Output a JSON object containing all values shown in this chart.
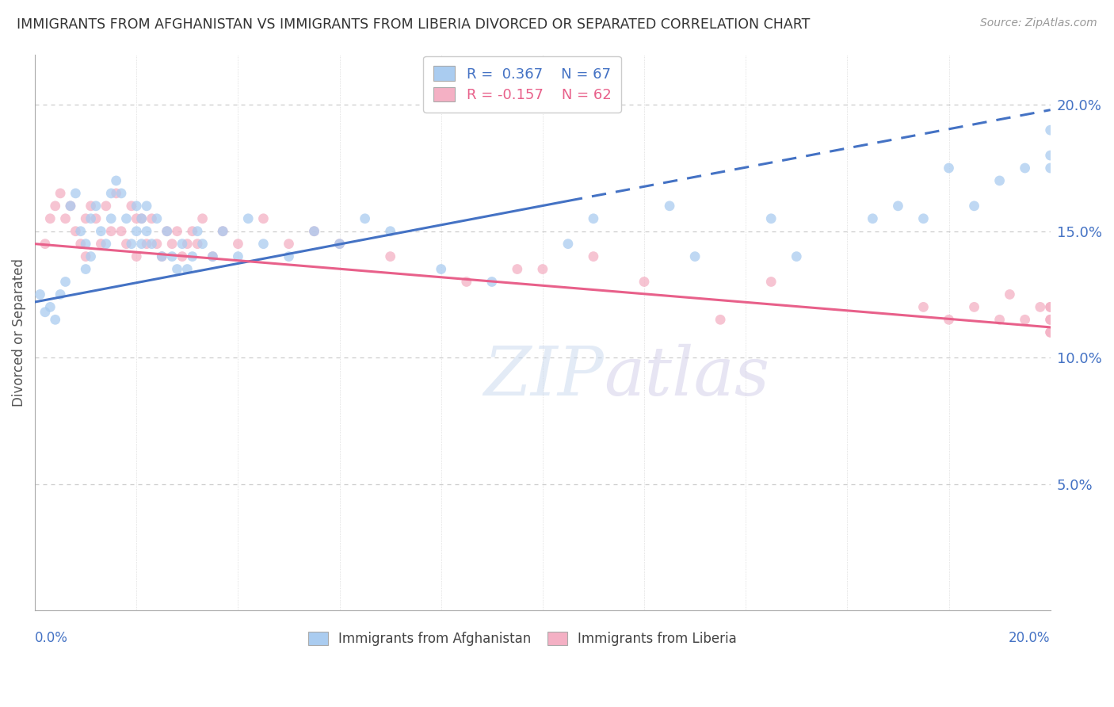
{
  "title": "IMMIGRANTS FROM AFGHANISTAN VS IMMIGRANTS FROM LIBERIA DIVORCED OR SEPARATED CORRELATION CHART",
  "source": "Source: ZipAtlas.com",
  "ylabel": "Divorced or Separated",
  "afghanistan": {
    "R": 0.367,
    "N": 67,
    "color": "#aaccf0",
    "color_dark": "#5b9bd5",
    "points_x": [
      0.1,
      0.2,
      0.3,
      0.4,
      0.5,
      0.6,
      0.7,
      0.8,
      0.9,
      1.0,
      1.0,
      1.1,
      1.1,
      1.2,
      1.3,
      1.4,
      1.5,
      1.5,
      1.6,
      1.7,
      1.8,
      1.9,
      2.0,
      2.0,
      2.1,
      2.1,
      2.2,
      2.2,
      2.3,
      2.4,
      2.5,
      2.6,
      2.7,
      2.8,
      2.9,
      3.0,
      3.1,
      3.2,
      3.3,
      3.5,
      3.7,
      4.0,
      4.2,
      4.5,
      5.0,
      5.5,
      6.0,
      6.5,
      7.0,
      8.0,
      9.0,
      10.5,
      11.0,
      12.5,
      13.0,
      14.5,
      15.0,
      16.5,
      17.0,
      17.5,
      18.0,
      18.5,
      19.0,
      19.5,
      20.0,
      20.0,
      20.0
    ],
    "points_y": [
      12.5,
      11.8,
      12.0,
      11.5,
      12.5,
      13.0,
      16.0,
      16.5,
      15.0,
      13.5,
      14.5,
      14.0,
      15.5,
      16.0,
      15.0,
      14.5,
      16.5,
      15.5,
      17.0,
      16.5,
      15.5,
      14.5,
      15.0,
      16.0,
      15.5,
      14.5,
      16.0,
      15.0,
      14.5,
      15.5,
      14.0,
      15.0,
      14.0,
      13.5,
      14.5,
      13.5,
      14.0,
      15.0,
      14.5,
      14.0,
      15.0,
      14.0,
      15.5,
      14.5,
      14.0,
      15.0,
      14.5,
      15.5,
      15.0,
      13.5,
      13.0,
      14.5,
      15.5,
      16.0,
      14.0,
      15.5,
      14.0,
      15.5,
      16.0,
      15.5,
      17.5,
      16.0,
      17.0,
      17.5,
      18.0,
      17.5,
      19.0
    ]
  },
  "liberia": {
    "R": -0.157,
    "N": 62,
    "color": "#f4b0c4",
    "color_dark": "#e8608a",
    "points_x": [
      0.2,
      0.3,
      0.4,
      0.5,
      0.6,
      0.7,
      0.8,
      0.9,
      1.0,
      1.0,
      1.1,
      1.2,
      1.3,
      1.4,
      1.5,
      1.6,
      1.7,
      1.8,
      1.9,
      2.0,
      2.0,
      2.1,
      2.2,
      2.3,
      2.4,
      2.5,
      2.6,
      2.7,
      2.8,
      2.9,
      3.0,
      3.1,
      3.2,
      3.3,
      3.5,
      3.7,
      4.0,
      4.5,
      5.0,
      5.5,
      6.0,
      7.0,
      8.5,
      9.5,
      10.0,
      11.0,
      12.0,
      13.5,
      14.5,
      17.5,
      18.0,
      18.5,
      19.0,
      19.2,
      19.5,
      19.8,
      20.0,
      20.0,
      20.0,
      20.0,
      20.0,
      20.0
    ],
    "points_y": [
      14.5,
      15.5,
      16.0,
      16.5,
      15.5,
      16.0,
      15.0,
      14.5,
      15.5,
      14.0,
      16.0,
      15.5,
      14.5,
      16.0,
      15.0,
      16.5,
      15.0,
      14.5,
      16.0,
      15.5,
      14.0,
      15.5,
      14.5,
      15.5,
      14.5,
      14.0,
      15.0,
      14.5,
      15.0,
      14.0,
      14.5,
      15.0,
      14.5,
      15.5,
      14.0,
      15.0,
      14.5,
      15.5,
      14.5,
      15.0,
      14.5,
      14.0,
      13.0,
      13.5,
      13.5,
      14.0,
      13.0,
      11.5,
      13.0,
      12.0,
      11.5,
      12.0,
      11.5,
      12.5,
      11.5,
      12.0,
      11.5,
      12.0,
      11.0,
      11.5,
      12.0,
      11.0
    ]
  },
  "trendline_afghanistan": {
    "x_start": 0.0,
    "x_end": 20.0,
    "y_start": 12.2,
    "y_end": 19.8,
    "color": "#4472c4",
    "dashed_from_x": 10.5,
    "dashed_from_y": 16.2
  },
  "trendline_liberia": {
    "x_start": 0.0,
    "x_end": 20.0,
    "y_start": 14.5,
    "y_end": 11.2,
    "color": "#e8608a"
  },
  "xlim": [
    0.0,
    20.0
  ],
  "ylim": [
    0.0,
    22.0
  ],
  "yticks": [
    5.0,
    10.0,
    15.0,
    20.0
  ],
  "ytick_labels": [
    "5.0%",
    "10.0%",
    "15.0%",
    "20.0%"
  ],
  "background_color": "#ffffff",
  "marker_size": 85
}
